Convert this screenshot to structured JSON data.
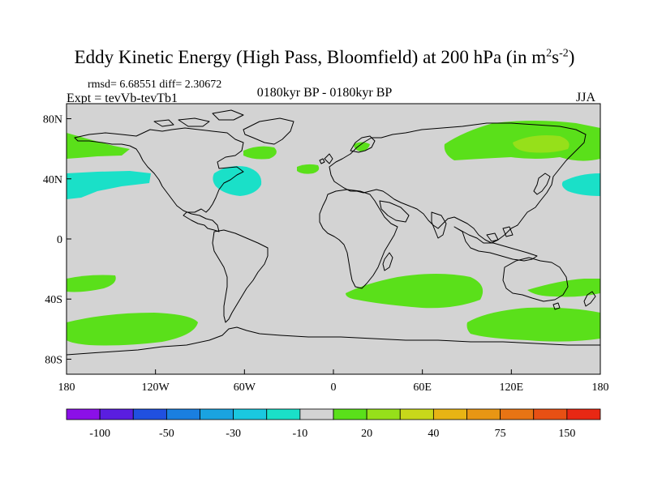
{
  "header": {
    "title_main": "Eddy Kinetic Energy (High Pass, Bloomfield) at 200 hPa (in m",
    "title_sup1": "2",
    "title_mid": "s",
    "title_sup2": "-2",
    "title_end": ")",
    "stats": "rmsd= 6.68551 diff= 2.30672",
    "experiment": "Expt = tevVb-tevTb1",
    "period": "0180kyr BP - 0180kyr BP",
    "season": "JJA"
  },
  "map": {
    "x_ticks": [
      {
        "lon": -180,
        "label": "180"
      },
      {
        "lon": -120,
        "label": "120W"
      },
      {
        "lon": -60,
        "label": "60W"
      },
      {
        "lon": 0,
        "label": "0"
      },
      {
        "lon": 60,
        "label": "60E"
      },
      {
        "lon": 120,
        "label": "120E"
      },
      {
        "lon": 180,
        "label": "180"
      }
    ],
    "y_ticks": [
      {
        "lat": 80,
        "label": "80N"
      },
      {
        "lat": 40,
        "label": "40N"
      },
      {
        "lat": 0,
        "label": "0"
      },
      {
        "lat": -40,
        "label": "40S"
      },
      {
        "lat": -80,
        "label": "80S"
      }
    ],
    "background_color": "#d3d3d3",
    "coastline_color": "#000000"
  },
  "colorbar": {
    "colors": [
      "#8b10e8",
      "#5a1ee0",
      "#2050e0",
      "#1a7fe0",
      "#1aa3e0",
      "#1ac8e0",
      "#1ae0c8",
      "#d3d3d3",
      "#5ae01a",
      "#96e01a",
      "#c8d81a",
      "#e8b414",
      "#e89614",
      "#e87414",
      "#e85014",
      "#e82814"
    ],
    "labels": [
      {
        "boundary": 2,
        "label": "-100"
      },
      {
        "boundary": 4,
        "label": "-50"
      },
      {
        "boundary": 6,
        "label": "-30"
      },
      {
        "boundary": 8,
        "label": "-10"
      },
      {
        "boundary": 10,
        "label": "20"
      },
      {
        "boundary": 12,
        "label": "40"
      },
      {
        "boundary": 14,
        "label": "75"
      },
      {
        "boundary": 16,
        "label": "150"
      }
    ]
  }
}
